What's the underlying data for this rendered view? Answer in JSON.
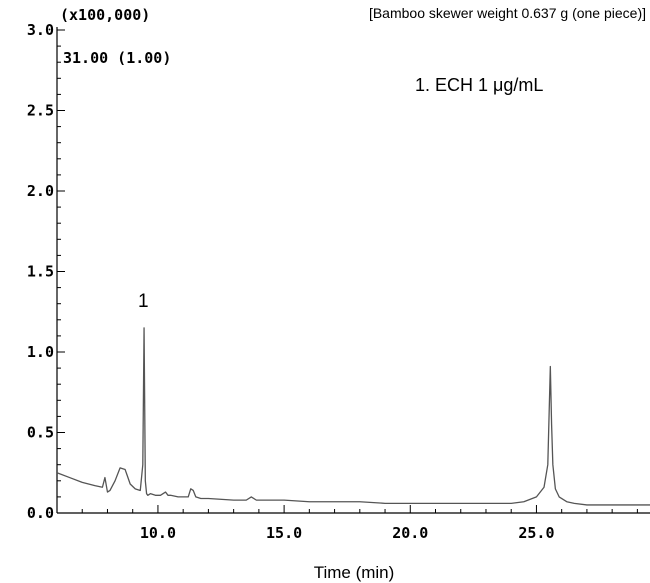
{
  "chart_data": {
    "type": "line",
    "title": "[Bamboo skewer weight 0.637 g (one piece)]",
    "scale_label": "(x100,000)",
    "channel_label": "31.00 (1.00)",
    "legend_text": "1. ECH 1 μg/mL",
    "xlabel": "Time (min)",
    "ylabel": "",
    "xlim": [
      6.0,
      29.5
    ],
    "ylim": [
      0.0,
      3.0
    ],
    "x_ticks": [
      10.0,
      15.0,
      20.0,
      25.0
    ],
    "x_tick_labels": [
      "10.0",
      "15.0",
      "20.0",
      "25.0"
    ],
    "y_ticks": [
      0.0,
      0.5,
      1.0,
      1.5,
      2.0,
      2.5,
      3.0
    ],
    "y_tick_labels": [
      "0.0",
      "0.5",
      "1.0",
      "1.5",
      "2.0",
      "2.5",
      "3.0"
    ],
    "grid": false,
    "series": [
      {
        "color": "#555555",
        "x": [
          6.0,
          6.5,
          7.0,
          7.5,
          7.8,
          7.9,
          8.0,
          8.1,
          8.3,
          8.5,
          8.7,
          8.9,
          9.1,
          9.3,
          9.4,
          9.45,
          9.5,
          9.55,
          9.6,
          9.7,
          9.9,
          10.1,
          10.3,
          10.4,
          10.5,
          10.8,
          11.0,
          11.2,
          11.3,
          11.4,
          11.5,
          11.7,
          12.0,
          13.0,
          13.5,
          13.7,
          13.9,
          14.0,
          15.0,
          16.0,
          17.0,
          18.0,
          19.0,
          20.0,
          21.0,
          22.0,
          23.0,
          24.0,
          24.5,
          25.0,
          25.3,
          25.45,
          25.55,
          25.6,
          25.65,
          25.75,
          25.9,
          26.2,
          26.5,
          27.0,
          28.0,
          29.0,
          29.5
        ],
        "y": [
          0.25,
          0.22,
          0.19,
          0.17,
          0.16,
          0.22,
          0.13,
          0.14,
          0.2,
          0.28,
          0.27,
          0.18,
          0.15,
          0.14,
          0.3,
          1.15,
          0.2,
          0.12,
          0.11,
          0.12,
          0.11,
          0.11,
          0.13,
          0.11,
          0.11,
          0.1,
          0.1,
          0.1,
          0.15,
          0.14,
          0.1,
          0.09,
          0.09,
          0.08,
          0.08,
          0.1,
          0.08,
          0.08,
          0.08,
          0.07,
          0.07,
          0.07,
          0.06,
          0.06,
          0.06,
          0.06,
          0.06,
          0.06,
          0.07,
          0.1,
          0.16,
          0.3,
          0.91,
          0.55,
          0.3,
          0.15,
          0.1,
          0.07,
          0.06,
          0.05,
          0.05,
          0.05,
          0.05
        ]
      }
    ],
    "annotations": [
      {
        "text": "1",
        "x": 9.5,
        "y": 1.15
      }
    ]
  }
}
